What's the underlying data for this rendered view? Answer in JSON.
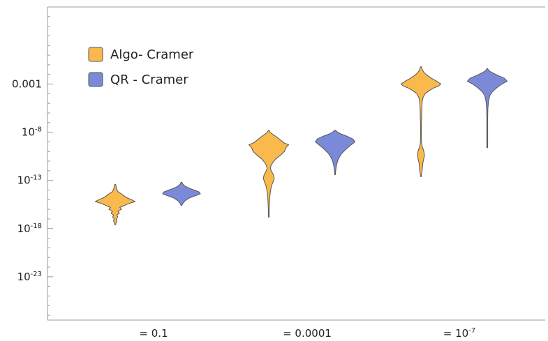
{
  "chart_data": {
    "type": "violin",
    "y_scale": "log10",
    "ylim_log10": [
      -27.5,
      5.0
    ],
    "y_ticks": [
      {
        "log10": -2.995,
        "base": "0.001",
        "exp": ""
      },
      {
        "log10": -8,
        "base": "10",
        "exp": "-8"
      },
      {
        "log10": -13,
        "base": "10",
        "exp": "-13"
      },
      {
        "log10": -18,
        "base": "10",
        "exp": "-18"
      },
      {
        "log10": -23,
        "base": "10",
        "exp": "-23"
      }
    ],
    "categories": [
      {
        "prefix": "= ",
        "base": "0.1",
        "exp": ""
      },
      {
        "prefix": "= ",
        "base": "0.0001",
        "exp": ""
      },
      {
        "prefix": "= ",
        "base": "10",
        "exp": "-7"
      }
    ],
    "series": [
      {
        "name": "Algo- Cramer",
        "color": "#f9b94d",
        "violins": [
          {
            "profile": [
              [
                -17.6,
                0.0
              ],
              [
                -17.4,
                0.04
              ],
              [
                -17.2,
                0.08
              ],
              [
                -17.0,
                0.05
              ],
              [
                -16.8,
                0.12
              ],
              [
                -16.6,
                0.08
              ],
              [
                -16.4,
                0.2
              ],
              [
                -16.2,
                0.13
              ],
              [
                -16.0,
                0.3
              ],
              [
                -15.8,
                0.22
              ],
              [
                -15.6,
                0.45
              ],
              [
                -15.4,
                0.65
              ],
              [
                -15.2,
                0.95
              ],
              [
                -15.0,
                0.78
              ],
              [
                -14.8,
                0.55
              ],
              [
                -14.6,
                0.42
              ],
              [
                -14.4,
                0.3
              ],
              [
                -14.2,
                0.15
              ],
              [
                -14.0,
                0.09
              ],
              [
                -13.8,
                0.06
              ],
              [
                -13.6,
                0.04
              ],
              [
                -13.4,
                0.0
              ]
            ]
          },
          {
            "profile": [
              [
                -16.8,
                0.0
              ],
              [
                -16.5,
                0.01
              ],
              [
                -16.0,
                0.02
              ],
              [
                -15.5,
                0.03
              ],
              [
                -15.0,
                0.04
              ],
              [
                -14.5,
                0.06
              ],
              [
                -14.0,
                0.09
              ],
              [
                -13.5,
                0.14
              ],
              [
                -13.2,
                0.2
              ],
              [
                -12.8,
                0.26
              ],
              [
                -12.4,
                0.22
              ],
              [
                -12.1,
                0.14
              ],
              [
                -11.8,
                0.08
              ],
              [
                -11.5,
                0.1
              ],
              [
                -11.2,
                0.18
              ],
              [
                -10.8,
                0.32
              ],
              [
                -10.4,
                0.55
              ],
              [
                -10.0,
                0.75
              ],
              [
                -9.6,
                0.82
              ],
              [
                -9.3,
                0.95
              ],
              [
                -9.1,
                0.72
              ],
              [
                -8.8,
                0.55
              ],
              [
                -8.5,
                0.38
              ],
              [
                -8.2,
                0.18
              ],
              [
                -8.0,
                0.06
              ],
              [
                -7.8,
                0.0
              ]
            ]
          },
          {
            "profile": [
              [
                -12.6,
                0.0
              ],
              [
                -12.3,
                0.03
              ],
              [
                -12.0,
                0.06
              ],
              [
                -11.6,
                0.07
              ],
              [
                -11.2,
                0.09
              ],
              [
                -10.8,
                0.13
              ],
              [
                -10.4,
                0.17
              ],
              [
                -10.0,
                0.14
              ],
              [
                -9.6,
                0.08
              ],
              [
                -9.2,
                0.03
              ],
              [
                -8.5,
                0.02
              ],
              [
                -7.5,
                0.02
              ],
              [
                -6.5,
                0.03
              ],
              [
                -5.5,
                0.04
              ],
              [
                -4.8,
                0.06
              ],
              [
                -4.4,
                0.1
              ],
              [
                -4.0,
                0.2
              ],
              [
                -3.7,
                0.38
              ],
              [
                -3.4,
                0.62
              ],
              [
                -3.2,
                0.85
              ],
              [
                -3.0,
                0.95
              ],
              [
                -2.7,
                0.75
              ],
              [
                -2.4,
                0.5
              ],
              [
                -2.1,
                0.3
              ],
              [
                -1.8,
                0.14
              ],
              [
                -1.5,
                0.06
              ],
              [
                -1.2,
                0.0
              ]
            ]
          }
        ]
      },
      {
        "name": "QR - Cramer",
        "color": "#7b8ad8",
        "violins": [
          {
            "profile": [
              [
                -15.6,
                0.0
              ],
              [
                -15.4,
                0.06
              ],
              [
                -15.1,
                0.18
              ],
              [
                -14.8,
                0.4
              ],
              [
                -14.6,
                0.65
              ],
              [
                -14.4,
                0.9
              ],
              [
                -14.2,
                0.85
              ],
              [
                -14.0,
                0.6
              ],
              [
                -13.8,
                0.35
              ],
              [
                -13.6,
                0.17
              ],
              [
                -13.4,
                0.07
              ],
              [
                -13.2,
                0.0
              ]
            ]
          },
          {
            "profile": [
              [
                -12.4,
                0.0
              ],
              [
                -12.2,
                0.02
              ],
              [
                -11.8,
                0.04
              ],
              [
                -11.4,
                0.07
              ],
              [
                -11.0,
                0.12
              ],
              [
                -10.6,
                0.2
              ],
              [
                -10.2,
                0.32
              ],
              [
                -9.8,
                0.5
              ],
              [
                -9.4,
                0.72
              ],
              [
                -9.0,
                0.95
              ],
              [
                -8.7,
                0.85
              ],
              [
                -8.4,
                0.55
              ],
              [
                -8.2,
                0.3
              ],
              [
                -8.0,
                0.12
              ],
              [
                -7.8,
                0.0
              ]
            ]
          },
          {
            "profile": [
              [
                -9.6,
                0.0
              ],
              [
                -9.2,
                0.012
              ],
              [
                -8.5,
                0.014
              ],
              [
                -7.5,
                0.016
              ],
              [
                -6.5,
                0.02
              ],
              [
                -5.5,
                0.03
              ],
              [
                -4.8,
                0.06
              ],
              [
                -4.2,
                0.12
              ],
              [
                -3.8,
                0.24
              ],
              [
                -3.4,
                0.45
              ],
              [
                -3.0,
                0.7
              ],
              [
                -2.7,
                0.95
              ],
              [
                -2.4,
                0.82
              ],
              [
                -2.1,
                0.5
              ],
              [
                -1.8,
                0.22
              ],
              [
                -1.6,
                0.07
              ],
              [
                -1.4,
                0.0
              ]
            ]
          }
        ]
      }
    ],
    "legend_position": "top-left",
    "grid": false
  }
}
